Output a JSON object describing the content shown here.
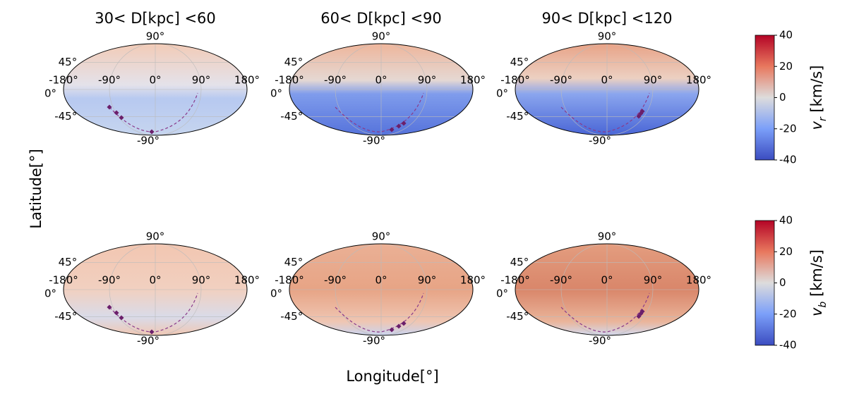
{
  "figure": {
    "xlabel": "Longitude[°]",
    "ylabel": "Latitude[°]"
  },
  "chart_data": [
    {
      "type": "skymap",
      "title": "30< D[kpc] <60",
      "xticks": [
        {
          "value": -180,
          "label": "-180°"
        },
        {
          "value": -90,
          "label": "-90°"
        },
        {
          "value": 0,
          "label": "0°"
        },
        {
          "value": 90,
          "label": "90°"
        },
        {
          "value": 180,
          "label": "180°"
        }
      ],
      "yticks": [
        {
          "value": 90,
          "label": "90°"
        },
        {
          "value": 45,
          "label": "45°"
        },
        {
          "value": 0,
          "label": "0°"
        },
        {
          "value": -45,
          "label": "-45°"
        },
        {
          "value": -90,
          "label": "-90°"
        }
      ]
    },
    {
      "type": "skymap",
      "title": "60< D[kpc] <90",
      "xticks": [
        {
          "value": -180,
          "label": "-180°"
        },
        {
          "value": -90,
          "label": "-90°"
        },
        {
          "value": 0,
          "label": "0°"
        },
        {
          "value": 90,
          "label": "90°"
        },
        {
          "value": 180,
          "label": "180°"
        }
      ],
      "yticks": [
        {
          "value": 90,
          "label": "90°"
        },
        {
          "value": 45,
          "label": "45°"
        },
        {
          "value": 0,
          "label": "0°"
        },
        {
          "value": -45,
          "label": "-45°"
        },
        {
          "value": -90,
          "label": "-90°"
        }
      ]
    },
    {
      "type": "skymap",
      "title": "90< D[kpc] <120",
      "xticks": [
        {
          "value": -180,
          "label": "-180°"
        },
        {
          "value": -90,
          "label": "-90°"
        },
        {
          "value": 0,
          "label": "0°"
        },
        {
          "value": 90,
          "label": "90°"
        },
        {
          "value": 180,
          "label": "180°"
        }
      ],
      "yticks": [
        {
          "value": 90,
          "label": "90°"
        },
        {
          "value": 45,
          "label": "45°"
        },
        {
          "value": 0,
          "label": "0°"
        },
        {
          "value": -45,
          "label": "-45°"
        },
        {
          "value": -90,
          "label": "-90°"
        }
      ]
    },
    {
      "type": "skymap",
      "xticks": [
        {
          "value": -180,
          "label": "-180°"
        },
        {
          "value": -90,
          "label": "-90°"
        },
        {
          "value": 0,
          "label": "0°"
        },
        {
          "value": 90,
          "label": "90°"
        },
        {
          "value": 180,
          "label": "180°"
        }
      ],
      "yticks": [
        {
          "value": 90,
          "label": "90°"
        },
        {
          "value": 45,
          "label": "45°"
        },
        {
          "value": 0,
          "label": "0°"
        },
        {
          "value": -45,
          "label": "-45°"
        },
        {
          "value": -90,
          "label": "-90°"
        }
      ]
    },
    {
      "type": "skymap",
      "xticks": [
        {
          "value": -180,
          "label": "-180°"
        },
        {
          "value": -90,
          "label": "-90°"
        },
        {
          "value": 0,
          "label": "0°"
        },
        {
          "value": 90,
          "label": "90°"
        },
        {
          "value": 180,
          "label": "180°"
        }
      ],
      "yticks": [
        {
          "value": 90,
          "label": "90°"
        },
        {
          "value": 45,
          "label": "45°"
        },
        {
          "value": 0,
          "label": "0°"
        },
        {
          "value": -45,
          "label": "-45°"
        },
        {
          "value": -90,
          "label": "-90°"
        }
      ]
    },
    {
      "type": "skymap",
      "xticks": [
        {
          "value": -180,
          "label": "-180°"
        },
        {
          "value": -90,
          "label": "-90°"
        },
        {
          "value": 0,
          "label": "0°"
        },
        {
          "value": 90,
          "label": "90°"
        },
        {
          "value": 180,
          "label": "180°"
        }
      ],
      "yticks": [
        {
          "value": 90,
          "label": "90°"
        },
        {
          "value": 45,
          "label": "45°"
        },
        {
          "value": 0,
          "label": "0°"
        },
        {
          "value": -45,
          "label": "-45°"
        },
        {
          "value": -90,
          "label": "-90°"
        }
      ]
    }
  ],
  "colorbars": [
    {
      "symbol": "v",
      "subscript": "r",
      "unit": "[km/s]",
      "ylim": [
        -40,
        40
      ],
      "yticks": [
        40,
        20,
        0,
        -20,
        -40
      ]
    },
    {
      "symbol": "v",
      "subscript": "b",
      "unit": "[km/s]",
      "ylim": [
        -40,
        40
      ],
      "yticks": [
        40,
        20,
        0,
        -20,
        -40
      ]
    }
  ]
}
